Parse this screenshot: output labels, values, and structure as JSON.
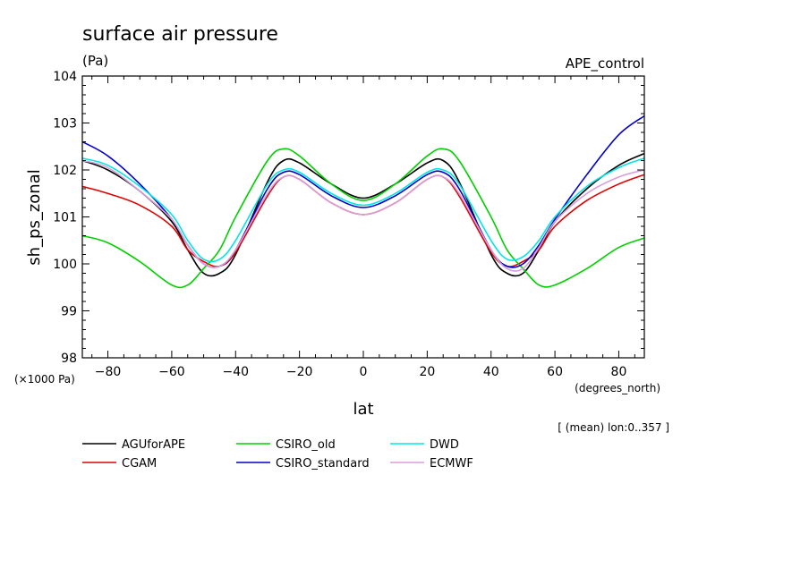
{
  "chart_data": {
    "type": "line",
    "title": "surface air pressure",
    "units": "(Pa)",
    "experiment": "APE_control",
    "ylabel": "sh_ps_zonal",
    "xlabel": "lat",
    "x_units": "(degrees_north)",
    "y_scale_note": "(×1000 Pa)",
    "footnote": "[ (mean) lon:0..357 ]",
    "xlim": [
      -88,
      88
    ],
    "ylim": [
      98,
      104
    ],
    "x_ticks": [
      -80,
      -60,
      -40,
      -20,
      0,
      20,
      40,
      60,
      80
    ],
    "x_tick_labels": [
      "−80",
      "−60",
      "−40",
      "−20",
      "0",
      "20",
      "40",
      "60",
      "80"
    ],
    "y_ticks": [
      98,
      99,
      100,
      101,
      102,
      103,
      104
    ],
    "y_tick_labels": [
      "98",
      "99",
      "100",
      "101",
      "102",
      "103",
      "104"
    ],
    "grid": false,
    "legend_position": "bottom",
    "x": [
      -88,
      -80,
      -70,
      -60,
      -55,
      -50,
      -45,
      -40,
      -30,
      -25,
      -20,
      -10,
      0,
      10,
      20,
      25,
      30,
      40,
      45,
      50,
      55,
      60,
      70,
      80,
      88
    ],
    "series": [
      {
        "name": "AGUforAPE",
        "color": "#000000",
        "values": [
          102.2,
          102.0,
          101.55,
          100.9,
          100.3,
          99.8,
          99.8,
          100.2,
          101.75,
          102.2,
          102.15,
          101.7,
          101.4,
          101.7,
          102.15,
          102.2,
          101.75,
          100.2,
          99.8,
          99.8,
          100.3,
          100.9,
          101.6,
          102.1,
          102.35
        ]
      },
      {
        "name": "CGAM",
        "color": "#e00000",
        "values": [
          101.65,
          101.5,
          101.25,
          100.8,
          100.3,
          100.05,
          99.95,
          100.25,
          101.45,
          101.85,
          101.8,
          101.3,
          101.05,
          101.3,
          101.8,
          101.85,
          101.45,
          100.25,
          99.95,
          100.05,
          100.3,
          100.8,
          101.35,
          101.7,
          101.9
        ]
      },
      {
        "name": "CSIRO_old",
        "color": "#00d000",
        "values": [
          100.6,
          100.45,
          100.05,
          99.55,
          99.55,
          99.9,
          100.3,
          101.0,
          102.2,
          102.45,
          102.3,
          101.7,
          101.35,
          101.7,
          102.3,
          102.45,
          102.2,
          101.0,
          100.3,
          99.9,
          99.55,
          99.55,
          99.9,
          100.35,
          100.55
        ]
      },
      {
        "name": "CSIRO_standard",
        "color": "#0000cc",
        "values": [
          102.6,
          102.3,
          101.7,
          100.95,
          100.4,
          100.0,
          99.95,
          100.3,
          101.6,
          101.95,
          101.9,
          101.45,
          101.2,
          101.45,
          101.9,
          101.95,
          101.6,
          100.3,
          99.95,
          100.0,
          100.4,
          100.95,
          101.9,
          102.75,
          103.15
        ]
      },
      {
        "name": "DWD",
        "color": "#00e5e5",
        "values": [
          102.25,
          102.1,
          101.65,
          101.05,
          100.5,
          100.1,
          100.1,
          100.5,
          101.7,
          102.0,
          101.95,
          101.5,
          101.25,
          101.5,
          101.95,
          102.0,
          101.7,
          100.5,
          100.1,
          100.15,
          100.5,
          101.0,
          101.65,
          102.05,
          102.25
        ]
      },
      {
        "name": "ECMWF",
        "color": "#d8a0d8",
        "values": [
          102.2,
          102.05,
          101.55,
          100.95,
          100.4,
          100.0,
          99.95,
          100.3,
          101.5,
          101.85,
          101.8,
          101.3,
          101.05,
          101.3,
          101.8,
          101.85,
          101.5,
          100.3,
          99.9,
          99.9,
          100.35,
          100.9,
          101.5,
          101.85,
          102.0
        ]
      }
    ]
  }
}
